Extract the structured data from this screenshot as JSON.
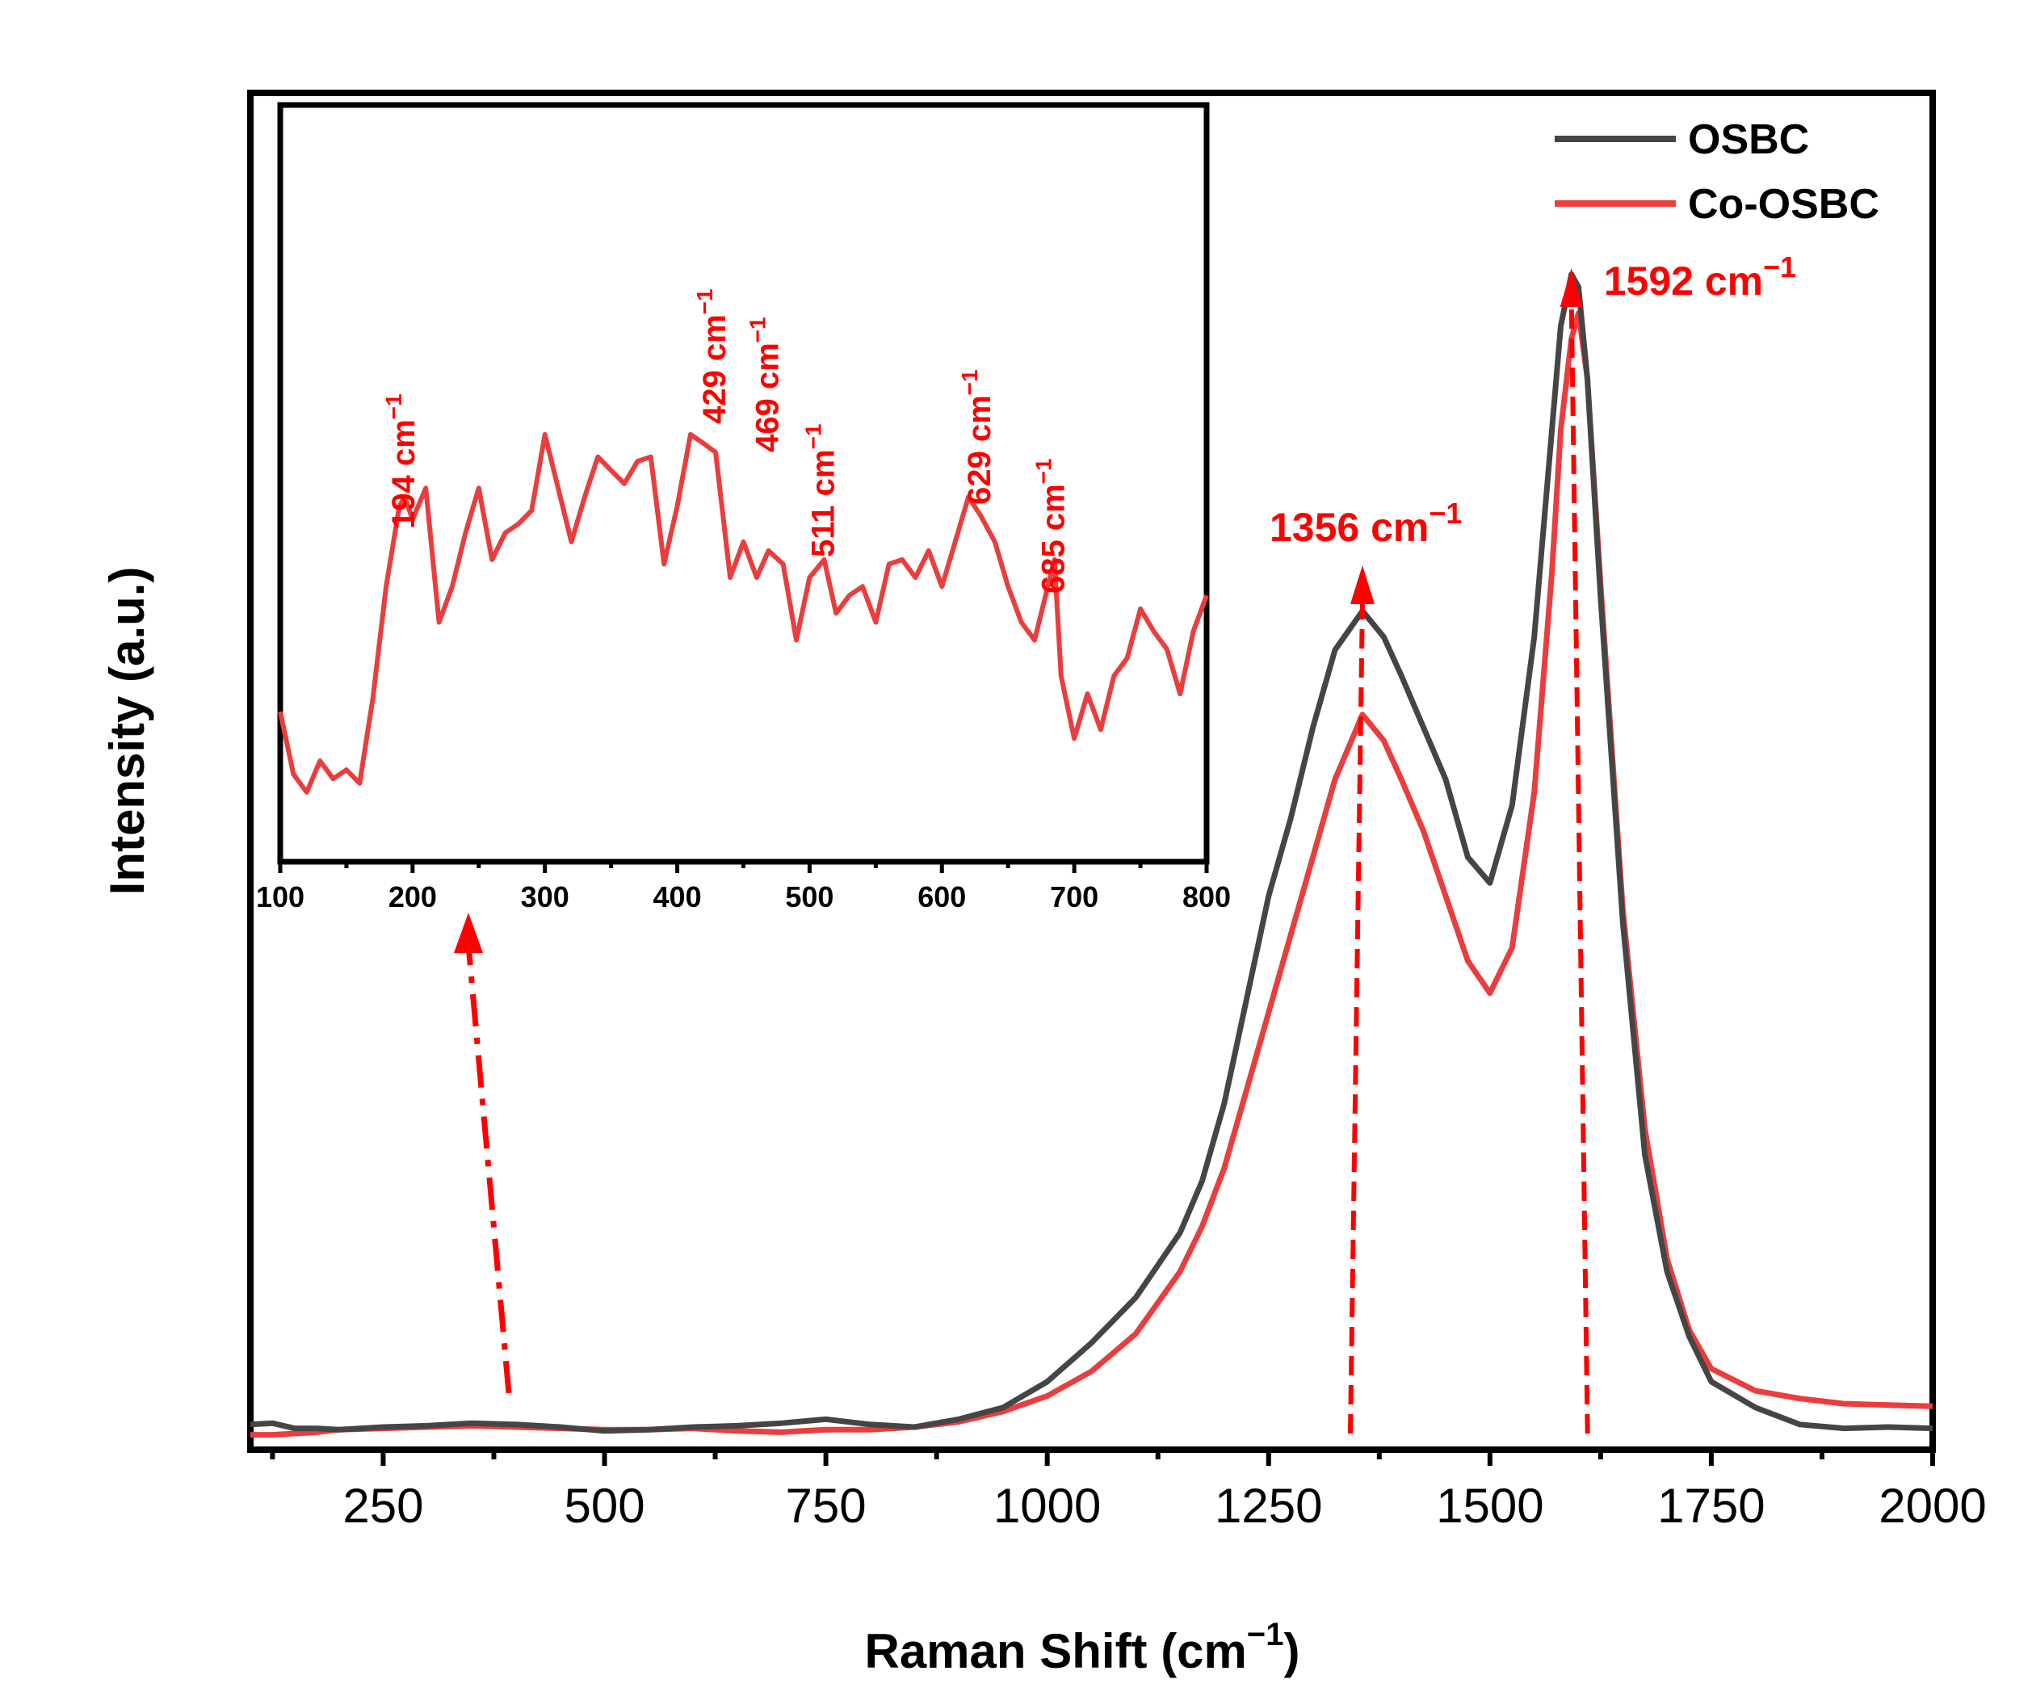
{
  "chart_data": {
    "type": "line",
    "title": "",
    "xlabel": "Raman Shift (cm",
    "xlabel_sup": "−1",
    "xlabel_close": ")",
    "ylabel": "Intensity (a.u.)",
    "xlim": [
      100,
      2000
    ],
    "ylim": [
      0,
      100
    ],
    "xticks": [
      250,
      500,
      750,
      1000,
      1250,
      1500,
      1750,
      2000
    ],
    "legend_position": "top-right",
    "colors": {
      "OSBC": "#454545",
      "Co-OSBC": "#ea3d3d",
      "annotation": "#ff0000",
      "axis": "#000000"
    },
    "series": [
      {
        "name": "OSBC",
        "x": [
          100,
          125,
          150,
          175,
          200,
          250,
          300,
          350,
          400,
          450,
          500,
          550,
          600,
          650,
          700,
          750,
          800,
          850,
          900,
          950,
          1000,
          1050,
          1100,
          1150,
          1175,
          1200,
          1225,
          1250,
          1275,
          1300,
          1325,
          1356,
          1380,
          1400,
          1425,
          1450,
          1475,
          1500,
          1525,
          1550,
          1570,
          1580,
          1592,
          1600,
          1610,
          1625,
          1650,
          1675,
          1700,
          1725,
          1750,
          1800,
          1850,
          1900,
          1950,
          2000
        ],
        "y": [
          1.2,
          1.3,
          0.9,
          0.9,
          0.8,
          1.0,
          1.1,
          1.3,
          1.2,
          1.0,
          0.7,
          0.8,
          1.0,
          1.1,
          1.3,
          1.6,
          1.2,
          1.0,
          1.6,
          2.5,
          4.5,
          7.5,
          11,
          16,
          20,
          26,
          34,
          42,
          48,
          55,
          61,
          64,
          62,
          59,
          55,
          51,
          45,
          43,
          49,
          62,
          78,
          86,
          90,
          89,
          82,
          65,
          40,
          22,
          13,
          8,
          4.5,
          2.5,
          1.2,
          0.9,
          1.0,
          0.9
        ]
      },
      {
        "name": "Co-OSBC",
        "x": [
          100,
          125,
          150,
          175,
          200,
          250,
          300,
          350,
          400,
          450,
          500,
          550,
          600,
          650,
          700,
          750,
          800,
          850,
          900,
          950,
          1000,
          1050,
          1100,
          1150,
          1175,
          1200,
          1225,
          1250,
          1275,
          1300,
          1325,
          1356,
          1380,
          1400,
          1425,
          1450,
          1475,
          1500,
          1525,
          1550,
          1570,
          1580,
          1592,
          1600,
          1610,
          1625,
          1650,
          1675,
          1700,
          1725,
          1750,
          1800,
          1850,
          1900,
          1950,
          2000
        ],
        "y": [
          0.4,
          0.4,
          0.5,
          0.6,
          0.8,
          0.9,
          1.0,
          1.1,
          1.0,
          0.9,
          0.8,
          0.8,
          0.9,
          0.7,
          0.6,
          0.8,
          0.8,
          1.0,
          1.4,
          2.2,
          3.4,
          5.3,
          8.2,
          13,
          16.5,
          21,
          27,
          33,
          39,
          45,
          51,
          56,
          54,
          51,
          47,
          42,
          37,
          34.5,
          38,
          50,
          67,
          78,
          85,
          87,
          82,
          66,
          41,
          24,
          14,
          8.5,
          5.5,
          3.8,
          3.2,
          2.8,
          2.7,
          2.6
        ]
      }
    ],
    "annotations_main": [
      {
        "label": "1356 cm",
        "sup": "−1",
        "x": 1356
      },
      {
        "label": "1592 cm",
        "sup": "−1",
        "x": 1592
      }
    ],
    "inset": {
      "xlim": [
        100,
        800
      ],
      "xticks": [
        100,
        200,
        300,
        400,
        500,
        600,
        700,
        800
      ],
      "series": {
        "name": "Co-OSBC",
        "x": [
          100,
          110,
          120,
          130,
          140,
          150,
          160,
          170,
          180,
          190,
          194,
          200,
          210,
          220,
          230,
          240,
          250,
          260,
          270,
          280,
          290,
          300,
          310,
          320,
          330,
          340,
          350,
          360,
          370,
          380,
          390,
          400,
          410,
          420,
          429,
          440,
          450,
          460,
          469,
          480,
          490,
          500,
          511,
          520,
          530,
          540,
          550,
          560,
          570,
          580,
          590,
          600,
          610,
          620,
          629,
          640,
          650,
          660,
          670,
          680,
          685,
          690,
          700,
          710,
          720,
          730,
          740,
          750,
          760,
          770,
          780,
          790,
          800
        ],
        "y": [
          22,
          8,
          4,
          11,
          7,
          9,
          6,
          25,
          50,
          68,
          70,
          65,
          72,
          42,
          50,
          62,
          72,
          56,
          62,
          64,
          67,
          84,
          72,
          60,
          70,
          79,
          76,
          73,
          78,
          79,
          55,
          68,
          84,
          82,
          80,
          52,
          60,
          52,
          58,
          55,
          38,
          52,
          56,
          44,
          48,
          50,
          42,
          55,
          56,
          52,
          58,
          50,
          60,
          70,
          66,
          60,
          50,
          42,
          38,
          50,
          56,
          30,
          16,
          26,
          18,
          30,
          34,
          45,
          40,
          36,
          26,
          40,
          48
        ]
      },
      "annotations": [
        {
          "label": "194 cm",
          "sup": "−1",
          "x": 194
        },
        {
          "label": "429 cm",
          "sup": "−1",
          "x": 429
        },
        {
          "label": "469 cm",
          "sup": "−1",
          "x": 469
        },
        {
          "label": "511 cm",
          "sup": "−1",
          "x": 511
        },
        {
          "label": "629 cm",
          "sup": "−1",
          "x": 629
        },
        {
          "label": "685 cm",
          "sup": "−1",
          "x": 685
        }
      ]
    }
  }
}
